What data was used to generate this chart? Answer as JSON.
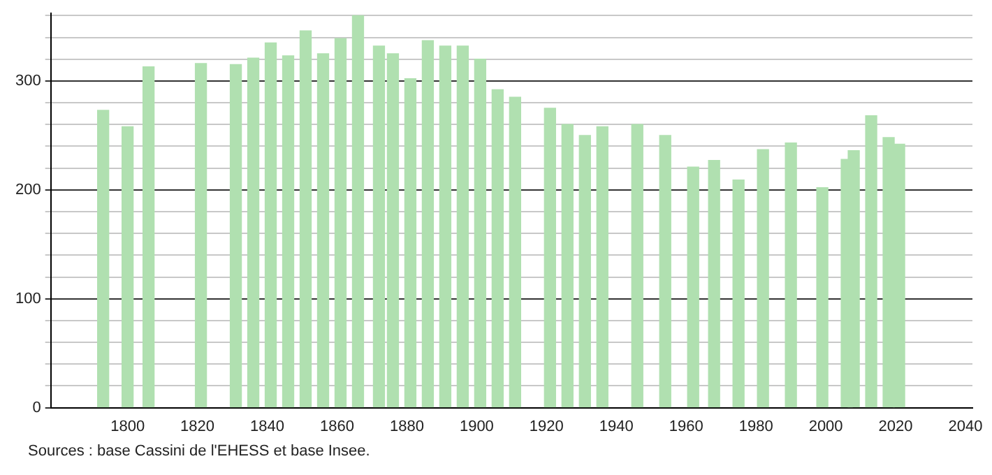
{
  "chart_data": {
    "type": "bar",
    "x": [
      1793,
      1800,
      1806,
      1821,
      1831,
      1836,
      1841,
      1846,
      1851,
      1856,
      1861,
      1866,
      1872,
      1876,
      1881,
      1886,
      1891,
      1896,
      1901,
      1906,
      1911,
      1921,
      1926,
      1931,
      1936,
      1946,
      1954,
      1962,
      1968,
      1975,
      1982,
      1990,
      1999,
      2006,
      2008,
      2013,
      2018,
      2021
    ],
    "values": [
      273,
      258,
      313,
      316,
      315,
      321,
      335,
      323,
      346,
      325,
      339,
      360,
      332,
      325,
      302,
      337,
      332,
      332,
      320,
      292,
      285,
      275,
      260,
      250,
      258,
      260,
      250,
      221,
      227,
      209,
      237,
      243,
      202,
      228,
      236,
      268,
      248,
      242
    ],
    "color": "#b0e0b0",
    "xlim": [
      1778,
      2042
    ],
    "xticks": [
      1800,
      1820,
      1840,
      1860,
      1880,
      1900,
      1920,
      1940,
      1960,
      1980,
      2000,
      2020,
      2040
    ],
    "ylim": [
      0,
      362
    ],
    "yticks": [
      0,
      {
        "value": 20,
        "label": null
      },
      {
        "value": 40,
        "label": null
      },
      {
        "value": 60,
        "label": null
      },
      {
        "value": 80,
        "label": null
      },
      100,
      {
        "value": 120,
        "label": null
      },
      {
        "value": 140,
        "label": null
      },
      {
        "value": 160,
        "label": null
      },
      {
        "value": 180,
        "label": null
      },
      200,
      {
        "value": 220,
        "label": null
      },
      {
        "value": 240,
        "label": null
      },
      {
        "value": 260,
        "label": null
      },
      {
        "value": 280,
        "label": null
      },
      300,
      {
        "value": 320,
        "label": null
      },
      {
        "value": 340,
        "label": null
      },
      {
        "value": 360,
        "label": null
      }
    ],
    "grid": "y",
    "annotations": [
      "Sources : base Cassini de l'EHESS et base Insee."
    ]
  }
}
